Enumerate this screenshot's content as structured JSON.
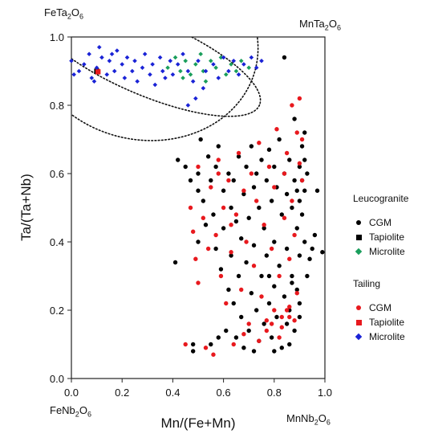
{
  "corners": {
    "top_left": {
      "base": "FeTa",
      "s1": "2",
      "mid": "O",
      "s2": "6"
    },
    "top_right": {
      "base": "MnTa",
      "s1": "2",
      "mid": "O",
      "s2": "6"
    },
    "bottom_left": {
      "base": "FeNb",
      "s1": "2",
      "mid": "O",
      "s2": "6"
    },
    "bottom_right": {
      "base": "MnNb",
      "s1": "2",
      "mid": "O",
      "s2": "6"
    }
  },
  "legend": {
    "group1_title": "Leucogranite",
    "group1_items": [
      {
        "label": "CGM",
        "marker": "circle",
        "color": "#000000"
      },
      {
        "label": "Tapiolite",
        "marker": "square",
        "color": "#000000"
      },
      {
        "label": "Microlite",
        "marker": "diamond",
        "color": "#1a9e5c"
      }
    ],
    "group2_title": "Tailing",
    "group2_items": [
      {
        "label": "CGM",
        "marker": "circle",
        "color": "#e8191e"
      },
      {
        "label": "Tapiolite",
        "marker": "square",
        "color": "#e8191e"
      },
      {
        "label": "Microlite",
        "marker": "diamond",
        "color": "#1a23d6"
      }
    ]
  },
  "chart_data": {
    "type": "scatter",
    "xlabel": "Mn/(Fe+Mn)",
    "ylabel": "Ta/(Ta+Nb)",
    "xlim": [
      0,
      1.0
    ],
    "ylim": [
      0,
      1.0
    ],
    "xticks": [
      "0.0",
      "0.2",
      "0.4",
      "0.6",
      "0.8",
      "1.0"
    ],
    "yticks": [
      "0.0",
      "0.2",
      "0.4",
      "0.6",
      "0.8",
      "1.0"
    ],
    "grid": false,
    "legend_position": "right",
    "series": [
      {
        "name": "CGM",
        "group": "Leucogranite",
        "marker": "circle",
        "color": "#000000",
        "points": [
          [
            0.41,
            0.34
          ],
          [
            0.42,
            0.64
          ],
          [
            0.45,
            0.62
          ],
          [
            0.47,
            0.58
          ],
          [
            0.48,
            0.1
          ],
          [
            0.48,
            0.08
          ],
          [
            0.5,
            0.55
          ],
          [
            0.5,
            0.4
          ],
          [
            0.5,
            0.6
          ],
          [
            0.51,
            0.7
          ],
          [
            0.52,
            0.52
          ],
          [
            0.53,
            0.45
          ],
          [
            0.54,
            0.65
          ],
          [
            0.55,
            0.58
          ],
          [
            0.55,
            0.1
          ],
          [
            0.56,
            0.48
          ],
          [
            0.57,
            0.38
          ],
          [
            0.57,
            0.62
          ],
          [
            0.58,
            0.68
          ],
          [
            0.58,
            0.12
          ],
          [
            0.59,
            0.32
          ],
          [
            0.6,
            0.55
          ],
          [
            0.6,
            0.44
          ],
          [
            0.61,
            0.14
          ],
          [
            0.62,
            0.6
          ],
          [
            0.62,
            0.26
          ],
          [
            0.63,
            0.5
          ],
          [
            0.63,
            0.36
          ],
          [
            0.64,
            0.58
          ],
          [
            0.64,
            0.22
          ],
          [
            0.65,
            0.46
          ],
          [
            0.65,
            0.12
          ],
          [
            0.66,
            0.65
          ],
          [
            0.66,
            0.3
          ],
          [
            0.67,
            0.41
          ],
          [
            0.67,
            0.18
          ],
          [
            0.68,
            0.54
          ],
          [
            0.68,
            0.09
          ],
          [
            0.69,
            0.62
          ],
          [
            0.69,
            0.34
          ],
          [
            0.7,
            0.47
          ],
          [
            0.7,
            0.14
          ],
          [
            0.71,
            0.68
          ],
          [
            0.71,
            0.25
          ],
          [
            0.72,
            0.56
          ],
          [
            0.72,
            0.39
          ],
          [
            0.73,
            0.6
          ],
          [
            0.73,
            0.2
          ],
          [
            0.74,
            0.5
          ],
          [
            0.74,
            0.11
          ],
          [
            0.75,
            0.64
          ],
          [
            0.75,
            0.3
          ],
          [
            0.76,
            0.44
          ],
          [
            0.76,
            0.16
          ],
          [
            0.77,
            0.58
          ],
          [
            0.77,
            0.36
          ],
          [
            0.78,
            0.67
          ],
          [
            0.78,
            0.22
          ],
          [
            0.79,
            0.52
          ],
          [
            0.79,
            0.12
          ],
          [
            0.8,
            0.62
          ],
          [
            0.8,
            0.4
          ],
          [
            0.8,
            0.27
          ],
          [
            0.81,
            0.56
          ],
          [
            0.81,
            0.18
          ],
          [
            0.82,
            0.7
          ],
          [
            0.82,
            0.33
          ],
          [
            0.83,
            0.48
          ],
          [
            0.83,
            0.09
          ],
          [
            0.84,
            0.6
          ],
          [
            0.84,
            0.24
          ],
          [
            0.84,
            0.94
          ],
          [
            0.85,
            0.54
          ],
          [
            0.85,
            0.38
          ],
          [
            0.86,
            0.64
          ],
          [
            0.86,
            0.2
          ],
          [
            0.87,
            0.5
          ],
          [
            0.87,
            0.3
          ],
          [
            0.88,
            0.58
          ],
          [
            0.88,
            0.14
          ],
          [
            0.88,
            0.76
          ],
          [
            0.89,
            0.55
          ],
          [
            0.89,
            0.44
          ],
          [
            0.89,
            0.26
          ],
          [
            0.9,
            0.62
          ],
          [
            0.9,
            0.52
          ],
          [
            0.9,
            0.36
          ],
          [
            0.9,
            0.18
          ],
          [
            0.91,
            0.68
          ],
          [
            0.91,
            0.48
          ],
          [
            0.91,
            0.58
          ],
          [
            0.92,
            0.4
          ],
          [
            0.92,
            0.72
          ],
          [
            0.92,
            0.55
          ],
          [
            0.93,
            0.6
          ],
          [
            0.93,
            0.3
          ],
          [
            0.94,
            0.35
          ],
          [
            0.95,
            0.38
          ],
          [
            0.96,
            0.42
          ],
          [
            0.97,
            0.55
          ],
          [
            0.99,
            0.37
          ],
          [
            0.86,
            0.1
          ],
          [
            0.8,
            0.08
          ],
          [
            0.72,
            0.08
          ],
          [
            0.9,
            0.22
          ],
          [
            0.87,
            0.28
          ],
          [
            0.85,
            0.16
          ],
          [
            0.78,
            0.3
          ],
          [
            0.92,
            0.64
          ]
        ]
      },
      {
        "name": "Tapiolite",
        "group": "Leucogranite",
        "marker": "square",
        "color": "#000000",
        "points": [
          [
            0.1,
            0.9
          ]
        ]
      },
      {
        "name": "Microlite",
        "group": "Leucogranite",
        "marker": "diamond",
        "color": "#1a9e5c",
        "points": [
          [
            0.38,
            0.91
          ],
          [
            0.41,
            0.94
          ],
          [
            0.43,
            0.9
          ],
          [
            0.45,
            0.93
          ],
          [
            0.47,
            0.89
          ],
          [
            0.49,
            0.92
          ],
          [
            0.51,
            0.95
          ],
          [
            0.52,
            0.9
          ],
          [
            0.55,
            0.93
          ],
          [
            0.57,
            0.91
          ],
          [
            0.59,
            0.94
          ],
          [
            0.61,
            0.89
          ],
          [
            0.63,
            0.92
          ],
          [
            0.65,
            0.9
          ],
          [
            0.67,
            0.93
          ],
          [
            0.7,
            0.91
          ],
          [
            0.44,
            0.88
          ],
          [
            0.53,
            0.87
          ]
        ]
      },
      {
        "name": "CGM",
        "group": "Tailing",
        "marker": "circle",
        "color": "#e8191e",
        "points": [
          [
            0.45,
            0.1
          ],
          [
            0.47,
            0.5
          ],
          [
            0.48,
            0.43
          ],
          [
            0.49,
            0.35
          ],
          [
            0.5,
            0.62
          ],
          [
            0.5,
            0.28
          ],
          [
            0.52,
            0.47
          ],
          [
            0.53,
            0.09
          ],
          [
            0.54,
            0.38
          ],
          [
            0.55,
            0.56
          ],
          [
            0.56,
            0.07
          ],
          [
            0.57,
            0.42
          ],
          [
            0.58,
            0.64
          ],
          [
            0.59,
            0.3
          ],
          [
            0.6,
            0.5
          ],
          [
            0.61,
            0.22
          ],
          [
            0.62,
            0.58
          ],
          [
            0.63,
            0.37
          ],
          [
            0.64,
            0.1
          ],
          [
            0.65,
            0.48
          ],
          [
            0.66,
            0.66
          ],
          [
            0.67,
            0.26
          ],
          [
            0.68,
            0.55
          ],
          [
            0.69,
            0.4
          ],
          [
            0.7,
            0.16
          ],
          [
            0.71,
            0.6
          ],
          [
            0.72,
            0.33
          ],
          [
            0.73,
            0.52
          ],
          [
            0.74,
            0.69
          ],
          [
            0.75,
            0.24
          ],
          [
            0.76,
            0.45
          ],
          [
            0.77,
            0.14
          ],
          [
            0.78,
            0.62
          ],
          [
            0.79,
            0.38
          ],
          [
            0.8,
            0.2
          ],
          [
            0.8,
            0.56
          ],
          [
            0.81,
            0.73
          ],
          [
            0.82,
            0.3
          ],
          [
            0.83,
            0.15
          ],
          [
            0.84,
            0.47
          ],
          [
            0.84,
            0.6
          ],
          [
            0.85,
            0.2
          ],
          [
            0.85,
            0.66
          ],
          [
            0.86,
            0.35
          ],
          [
            0.86,
            0.18
          ],
          [
            0.87,
            0.52
          ],
          [
            0.87,
            0.8
          ],
          [
            0.88,
            0.17
          ],
          [
            0.88,
            0.42
          ],
          [
            0.89,
            0.72
          ],
          [
            0.89,
            0.25
          ],
          [
            0.9,
            0.63
          ],
          [
            0.9,
            0.82
          ],
          [
            0.91,
            0.58
          ],
          [
            0.91,
            0.7
          ],
          [
            0.82,
            0.12
          ],
          [
            0.79,
            0.16
          ],
          [
            0.83,
            0.18
          ],
          [
            0.86,
            0.21
          ],
          [
            0.74,
            0.11
          ],
          [
            0.68,
            0.13
          ],
          [
            0.77,
            0.17
          ],
          [
            0.63,
            0.45
          ],
          [
            0.58,
            0.6
          ]
        ]
      },
      {
        "name": "Tapiolite",
        "group": "Tailing",
        "marker": "square",
        "color": "#e8191e",
        "points": [
          [
            0.105,
            0.898
          ]
        ]
      },
      {
        "name": "Microlite",
        "group": "Tailing",
        "marker": "diamond",
        "color": "#1a23d6",
        "points": [
          [
            0.0,
            0.93
          ],
          [
            0.01,
            0.89
          ],
          [
            0.03,
            0.9
          ],
          [
            0.05,
            0.92
          ],
          [
            0.07,
            0.95
          ],
          [
            0.08,
            0.88
          ],
          [
            0.1,
            0.91
          ],
          [
            0.12,
            0.94
          ],
          [
            0.11,
            0.97
          ],
          [
            0.14,
            0.89
          ],
          [
            0.15,
            0.93
          ],
          [
            0.17,
            0.9
          ],
          [
            0.18,
            0.96
          ],
          [
            0.2,
            0.92
          ],
          [
            0.21,
            0.88
          ],
          [
            0.22,
            0.94
          ],
          [
            0.24,
            0.9
          ],
          [
            0.25,
            0.93
          ],
          [
            0.26,
            0.87
          ],
          [
            0.28,
            0.91
          ],
          [
            0.29,
            0.95
          ],
          [
            0.31,
            0.89
          ],
          [
            0.32,
            0.92
          ],
          [
            0.33,
            0.86
          ],
          [
            0.35,
            0.94
          ],
          [
            0.36,
            0.9
          ],
          [
            0.37,
            0.88
          ],
          [
            0.39,
            0.93
          ],
          [
            0.4,
            0.89
          ],
          [
            0.42,
            0.92
          ],
          [
            0.44,
            0.95
          ],
          [
            0.46,
            0.9
          ],
          [
            0.48,
            0.87
          ],
          [
            0.5,
            0.93
          ],
          [
            0.53,
            0.9
          ],
          [
            0.56,
            0.92
          ],
          [
            0.58,
            0.88
          ],
          [
            0.6,
            0.94
          ],
          [
            0.62,
            0.9
          ],
          [
            0.64,
            0.93
          ],
          [
            0.66,
            0.89
          ],
          [
            0.68,
            0.92
          ],
          [
            0.71,
            0.94
          ],
          [
            0.73,
            0.91
          ],
          [
            0.75,
            0.93
          ],
          [
            0.49,
            0.82
          ],
          [
            0.46,
            0.8
          ],
          [
            0.52,
            0.85
          ],
          [
            0.09,
            0.87
          ],
          [
            0.16,
            0.95
          ]
        ]
      }
    ],
    "fields": [
      {
        "shape": "ellipse",
        "cx": 0.3,
        "cy": 0.94,
        "rx": 0.48,
        "ry": 0.11,
        "rotate": 23
      },
      {
        "shape": "ellipse",
        "cx": 0.28,
        "cy": 0.99,
        "rx": 0.46,
        "ry": 0.29,
        "rotate": 14
      }
    ]
  }
}
